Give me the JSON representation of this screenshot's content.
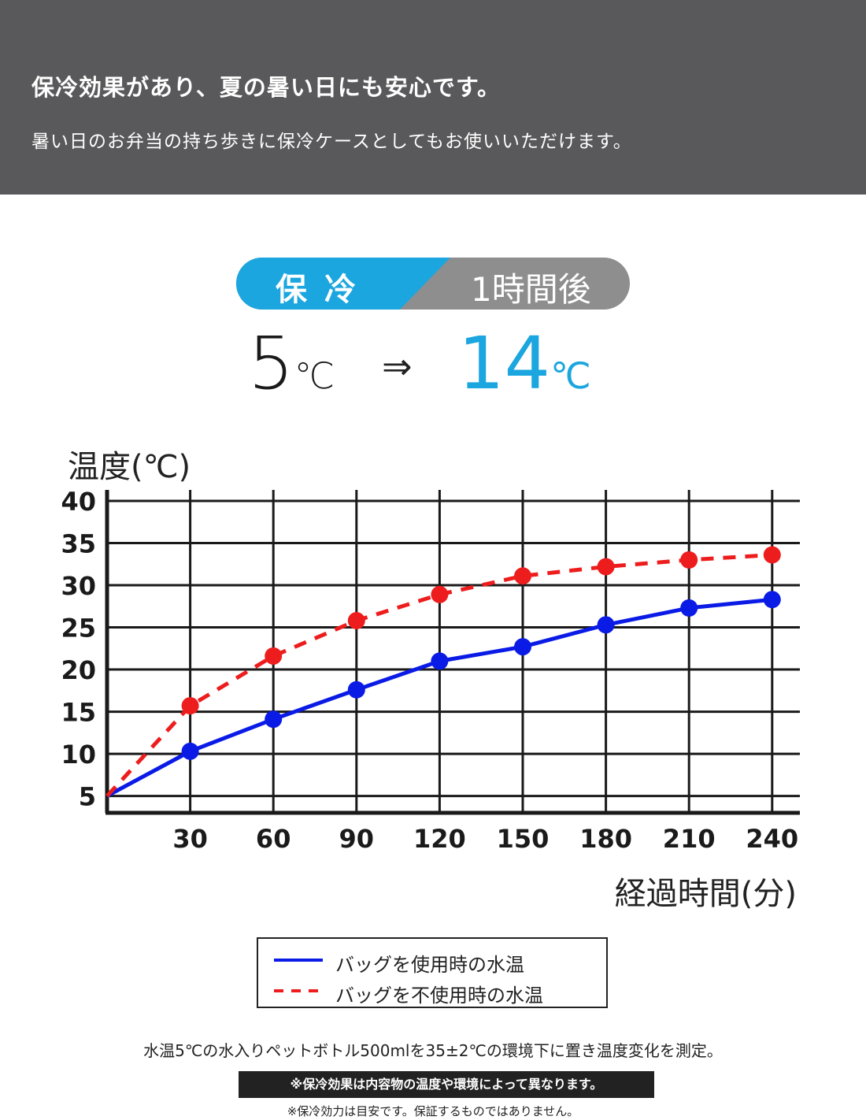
{
  "banner": {
    "title": "保冷効果があり、夏の暑い日にも安心です。",
    "subtitle": "暑い日のお弁当の持ち歩きに保冷ケースとしてもお使いいただけます。"
  },
  "badge": {
    "label": "保冷",
    "time": "1時間後",
    "left_color": "#1ba6df",
    "right_color": "#8e8e8e"
  },
  "result": {
    "before_value": "5",
    "before_unit": "℃",
    "arrow": "⇒",
    "after_value": "14",
    "after_unit": "℃",
    "after_color": "#1ba6df"
  },
  "chart_data": {
    "type": "line",
    "ylabel": "温度(℃)",
    "xlabel": "経過時間(分)",
    "x": [
      0,
      30,
      60,
      90,
      120,
      150,
      180,
      210,
      240
    ],
    "xticks": [
      "30",
      "60",
      "90",
      "120",
      "150",
      "180",
      "210",
      "240"
    ],
    "yticks": [
      "5",
      "10",
      "15",
      "20",
      "25",
      "30",
      "35",
      "40"
    ],
    "xlim": [
      0,
      250
    ],
    "ylim": [
      3,
      40
    ],
    "grid": true,
    "series": [
      {
        "name": "バッグを使用時の水温",
        "color": "#0a1be6",
        "dash": false,
        "values": [
          5,
          10.3,
          14.1,
          17.6,
          21,
          22.7,
          25.3,
          27.3,
          28.3
        ]
      },
      {
        "name": "バッグを不使用時の水温",
        "color": "#ee1d1d",
        "dash": true,
        "values": [
          5,
          15.7,
          21.6,
          25.8,
          28.9,
          31.1,
          32.2,
          33,
          33.6
        ]
      }
    ]
  },
  "footnote": "水温5℃の水入りペットボトル500mlを35±2℃の環境下に置き温度変化を測定。",
  "notice": "※保冷効果は内容物の温度や環境によって異なります。",
  "disclaimer": "※保冷効力は目安です。保証するものではありません。"
}
